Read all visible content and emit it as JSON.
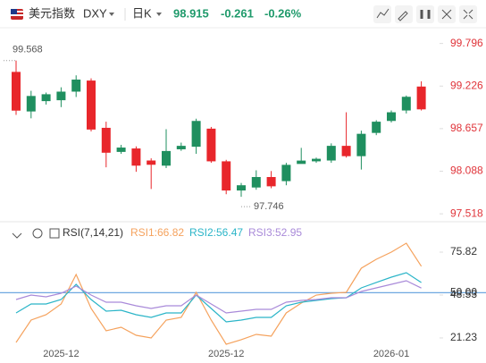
{
  "header": {
    "symbol": "美元指数",
    "code": "DXY",
    "period": "日K",
    "price": "98.915",
    "change": "-0.261",
    "change_pct": "-0.26%"
  },
  "chart_data": [
    {
      "type": "candlestick",
      "categories": [
        null,
        null,
        null,
        "2025-12",
        null,
        null,
        null,
        null,
        null,
        null,
        null,
        null,
        null,
        null,
        "2025-12",
        null,
        null,
        null,
        null,
        null,
        null,
        null,
        null,
        null,
        null,
        "2026-01",
        null,
        null
      ],
      "open": [
        99.416,
        98.887,
        99.025,
        99.037,
        99.152,
        99.3,
        98.668,
        98.346,
        98.392,
        98.231,
        98.162,
        98.381,
        98.415,
        98.657,
        98.22,
        97.83,
        97.87,
        98.01,
        97.955,
        98.185,
        98.22,
        98.231,
        98.427,
        98.289,
        98.6,
        98.76,
        98.9,
        99.22
      ],
      "close": [
        98.898,
        99.094,
        99.117,
        99.152,
        99.313,
        98.645,
        98.335,
        98.404,
        98.162,
        98.174,
        98.358,
        98.427,
        98.76,
        98.22,
        97.83,
        97.9,
        98.01,
        97.886,
        98.173,
        98.23,
        98.254,
        98.427,
        98.289,
        98.588,
        98.75,
        98.876,
        99.083,
        98.915
      ],
      "high": [
        99.568,
        99.163,
        99.14,
        99.21,
        99.37,
        99.33,
        98.75,
        98.44,
        98.42,
        98.26,
        98.65,
        98.47,
        98.79,
        98.68,
        98.24,
        97.93,
        98.1,
        98.09,
        98.2,
        98.4,
        98.27,
        98.46,
        98.876,
        98.63,
        98.77,
        98.9,
        99.1,
        99.29
      ],
      "low": [
        98.841,
        98.795,
        98.979,
        98.945,
        99.08,
        98.62,
        98.14,
        98.32,
        98.08,
        97.85,
        98.13,
        98.36,
        98.32,
        98.2,
        97.78,
        97.746,
        97.84,
        97.86,
        97.9,
        98.2,
        98.2,
        98.2,
        98.27,
        98.11,
        98.57,
        98.74,
        98.86,
        98.9
      ],
      "up_color": "#1f8f5f",
      "down_color": "#e8262b",
      "ylim": [
        97.448,
        99.923
      ],
      "yticks": [
        99.796,
        99.226,
        98.657,
        98.088,
        97.518
      ],
      "tick_color": "#e0343a"
    },
    {
      "type": "line",
      "title": "RSI(7,14,21)",
      "series": [
        {
          "name": "RSI1:66.82",
          "color": "#f5a25d",
          "values": [
            18.37,
            32.59,
            36.0,
            42.83,
            61.6,
            39.98,
            25.76,
            28.04,
            22.92,
            21.21,
            32.59,
            34.3,
            50.22,
            32.59,
            17.23,
            20.08,
            23.49,
            22.35,
            37.14,
            43.4,
            48.5,
            49.65,
            50.22,
            65.58,
            71.27,
            75.82,
            81.5,
            66.82
          ]
        },
        {
          "name": "RSI2:56.47",
          "color": "#2bb5c8",
          "values": [
            37.14,
            42.83,
            42.83,
            45.67,
            55.34,
            45.67,
            38.28,
            38.85,
            36.0,
            34.3,
            37.14,
            37.14,
            48.5,
            39.98,
            31.45,
            32.59,
            34.3,
            34.3,
            41.69,
            43.97,
            45.1,
            46.24,
            46.81,
            53.07,
            56.48,
            59.89,
            62.74,
            56.47
          ]
        },
        {
          "name": "RSI3:52.95",
          "color": "#a98ad9",
          "values": [
            45.67,
            48.5,
            47.38,
            49.65,
            54.2,
            48.5,
            43.97,
            43.97,
            41.69,
            39.98,
            41.69,
            41.69,
            48.5,
            42.83,
            37.14,
            38.28,
            39.41,
            39.41,
            43.97,
            45.1,
            45.67,
            46.81,
            46.81,
            50.79,
            53.07,
            55.34,
            57.62,
            52.95
          ]
        }
      ],
      "ylim": [
        10.97,
        89.47
      ],
      "yticks": [
        75.82,
        {
          "value": 50,
          "label": "50.00"
        },
        48.53,
        21.23
      ],
      "reference_tick": 1,
      "reference_color": "#6fa8e0",
      "tick_color": "#333333"
    }
  ]
}
